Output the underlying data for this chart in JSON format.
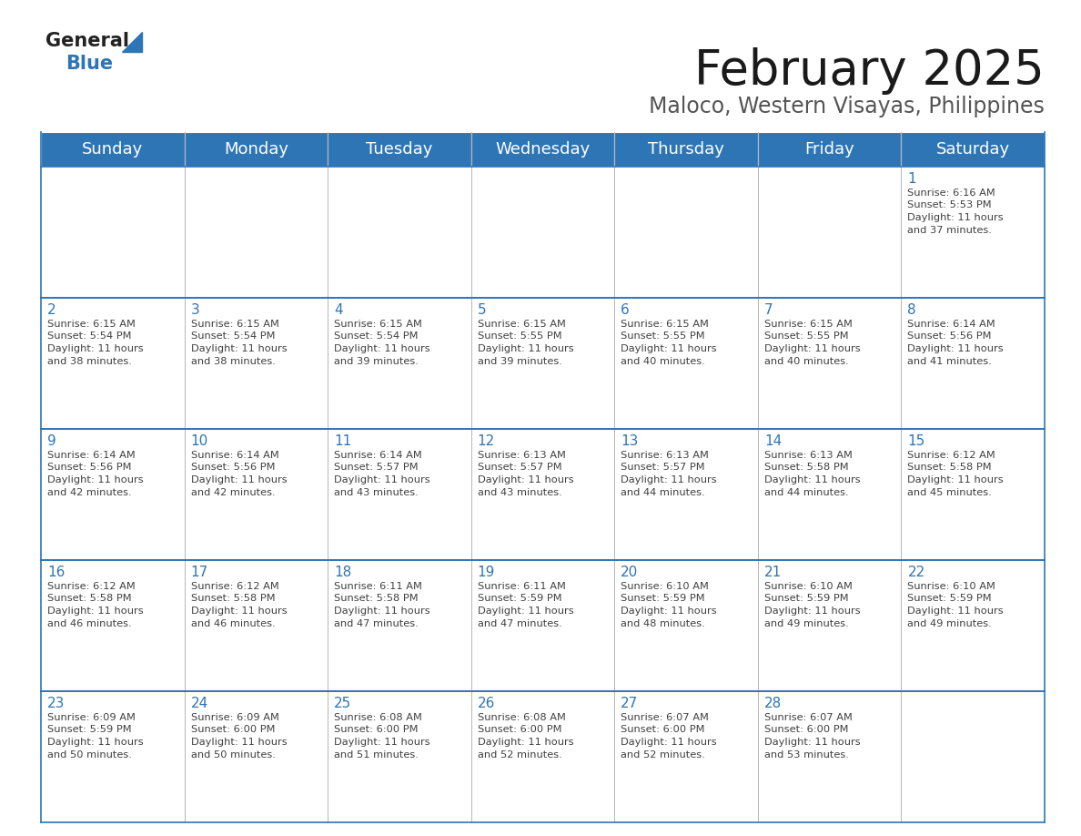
{
  "title": "February 2025",
  "subtitle": "Maloco, Western Visayas, Philippines",
  "header_bg_color": "#2E75B6",
  "header_text_color": "#FFFFFF",
  "cell_bg_color": "#FFFFFF",
  "text_color": "#404040",
  "day_number_color": "#2E75B6",
  "border_color": "#2E75B6",
  "line_color": "#AAAAAA",
  "days_of_week": [
    "Sunday",
    "Monday",
    "Tuesday",
    "Wednesday",
    "Thursday",
    "Friday",
    "Saturday"
  ],
  "title_fontsize": 38,
  "subtitle_fontsize": 17,
  "header_fontsize": 13,
  "day_num_fontsize": 11,
  "cell_text_fontsize": 8.2,
  "logo_general_color": "#222222",
  "logo_blue_color": "#2E75B6",
  "logo_triangle_color": "#2E75B6",
  "calendar_data": [
    [
      null,
      null,
      null,
      null,
      null,
      null,
      {
        "day": 1,
        "sunrise": "6:16 AM",
        "sunset": "5:53 PM",
        "daylight_hours": 11,
        "daylight_minutes": 37
      }
    ],
    [
      {
        "day": 2,
        "sunrise": "6:15 AM",
        "sunset": "5:54 PM",
        "daylight_hours": 11,
        "daylight_minutes": 38
      },
      {
        "day": 3,
        "sunrise": "6:15 AM",
        "sunset": "5:54 PM",
        "daylight_hours": 11,
        "daylight_minutes": 38
      },
      {
        "day": 4,
        "sunrise": "6:15 AM",
        "sunset": "5:54 PM",
        "daylight_hours": 11,
        "daylight_minutes": 39
      },
      {
        "day": 5,
        "sunrise": "6:15 AM",
        "sunset": "5:55 PM",
        "daylight_hours": 11,
        "daylight_minutes": 39
      },
      {
        "day": 6,
        "sunrise": "6:15 AM",
        "sunset": "5:55 PM",
        "daylight_hours": 11,
        "daylight_minutes": 40
      },
      {
        "day": 7,
        "sunrise": "6:15 AM",
        "sunset": "5:55 PM",
        "daylight_hours": 11,
        "daylight_minutes": 40
      },
      {
        "day": 8,
        "sunrise": "6:14 AM",
        "sunset": "5:56 PM",
        "daylight_hours": 11,
        "daylight_minutes": 41
      }
    ],
    [
      {
        "day": 9,
        "sunrise": "6:14 AM",
        "sunset": "5:56 PM",
        "daylight_hours": 11,
        "daylight_minutes": 42
      },
      {
        "day": 10,
        "sunrise": "6:14 AM",
        "sunset": "5:56 PM",
        "daylight_hours": 11,
        "daylight_minutes": 42
      },
      {
        "day": 11,
        "sunrise": "6:14 AM",
        "sunset": "5:57 PM",
        "daylight_hours": 11,
        "daylight_minutes": 43
      },
      {
        "day": 12,
        "sunrise": "6:13 AM",
        "sunset": "5:57 PM",
        "daylight_hours": 11,
        "daylight_minutes": 43
      },
      {
        "day": 13,
        "sunrise": "6:13 AM",
        "sunset": "5:57 PM",
        "daylight_hours": 11,
        "daylight_minutes": 44
      },
      {
        "day": 14,
        "sunrise": "6:13 AM",
        "sunset": "5:58 PM",
        "daylight_hours": 11,
        "daylight_minutes": 44
      },
      {
        "day": 15,
        "sunrise": "6:12 AM",
        "sunset": "5:58 PM",
        "daylight_hours": 11,
        "daylight_minutes": 45
      }
    ],
    [
      {
        "day": 16,
        "sunrise": "6:12 AM",
        "sunset": "5:58 PM",
        "daylight_hours": 11,
        "daylight_minutes": 46
      },
      {
        "day": 17,
        "sunrise": "6:12 AM",
        "sunset": "5:58 PM",
        "daylight_hours": 11,
        "daylight_minutes": 46
      },
      {
        "day": 18,
        "sunrise": "6:11 AM",
        "sunset": "5:58 PM",
        "daylight_hours": 11,
        "daylight_minutes": 47
      },
      {
        "day": 19,
        "sunrise": "6:11 AM",
        "sunset": "5:59 PM",
        "daylight_hours": 11,
        "daylight_minutes": 47
      },
      {
        "day": 20,
        "sunrise": "6:10 AM",
        "sunset": "5:59 PM",
        "daylight_hours": 11,
        "daylight_minutes": 48
      },
      {
        "day": 21,
        "sunrise": "6:10 AM",
        "sunset": "5:59 PM",
        "daylight_hours": 11,
        "daylight_minutes": 49
      },
      {
        "day": 22,
        "sunrise": "6:10 AM",
        "sunset": "5:59 PM",
        "daylight_hours": 11,
        "daylight_minutes": 49
      }
    ],
    [
      {
        "day": 23,
        "sunrise": "6:09 AM",
        "sunset": "5:59 PM",
        "daylight_hours": 11,
        "daylight_minutes": 50
      },
      {
        "day": 24,
        "sunrise": "6:09 AM",
        "sunset": "6:00 PM",
        "daylight_hours": 11,
        "daylight_minutes": 50
      },
      {
        "day": 25,
        "sunrise": "6:08 AM",
        "sunset": "6:00 PM",
        "daylight_hours": 11,
        "daylight_minutes": 51
      },
      {
        "day": 26,
        "sunrise": "6:08 AM",
        "sunset": "6:00 PM",
        "daylight_hours": 11,
        "daylight_minutes": 52
      },
      {
        "day": 27,
        "sunrise": "6:07 AM",
        "sunset": "6:00 PM",
        "daylight_hours": 11,
        "daylight_minutes": 52
      },
      {
        "day": 28,
        "sunrise": "6:07 AM",
        "sunset": "6:00 PM",
        "daylight_hours": 11,
        "daylight_minutes": 53
      },
      null
    ]
  ]
}
